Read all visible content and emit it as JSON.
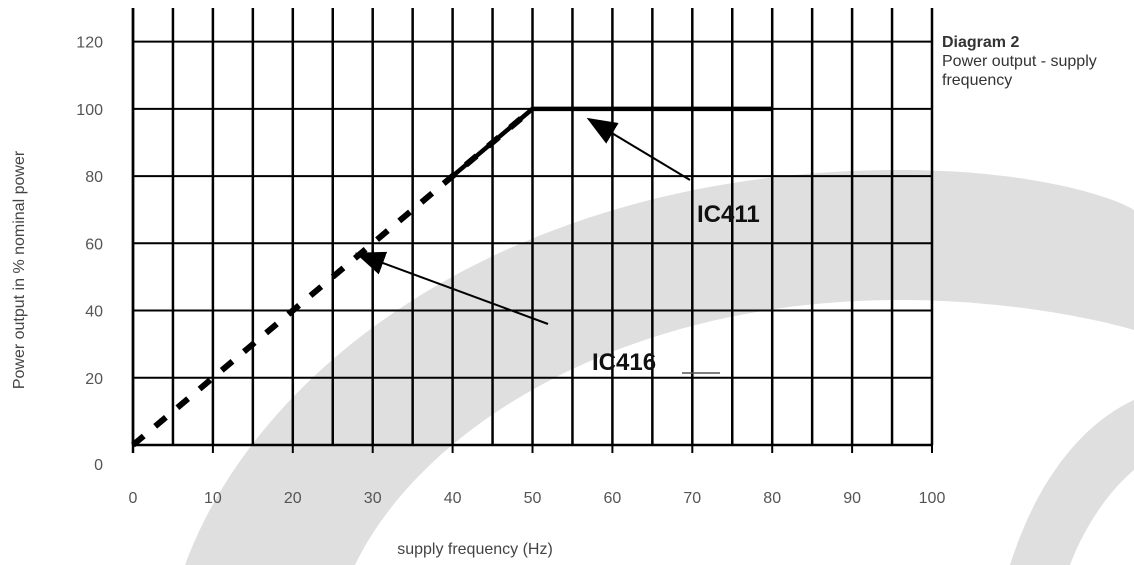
{
  "chart_data": {
    "type": "line",
    "title": "Diagram 2",
    "subtitle": "Power output - supply frequency",
    "xlabel": "supply frequency (Hz)",
    "ylabel": "Power output in % nominal power",
    "xlim": [
      0,
      100
    ],
    "ylim": [
      0,
      120
    ],
    "x_ticks": [
      0,
      10,
      20,
      30,
      40,
      50,
      60,
      70,
      80,
      90,
      100
    ],
    "y_ticks": [
      0,
      20,
      40,
      60,
      80,
      100,
      120
    ],
    "grid": true,
    "series": [
      {
        "name": "IC411",
        "style": "solid",
        "x": [
          40,
          50,
          80
        ],
        "y": [
          80,
          100,
          100
        ]
      },
      {
        "name": "IC416",
        "style": "dashed",
        "x": [
          0,
          50
        ],
        "y": [
          0,
          100
        ]
      }
    ],
    "annotations": [
      {
        "text": "IC411",
        "arrow_to": [
          57,
          97
        ]
      },
      {
        "text": "IC416",
        "arrow_to": [
          28,
          57
        ]
      }
    ]
  },
  "colors": {
    "line": "#000000",
    "grid": "#000000",
    "watermark": "#d9d9d9"
  }
}
